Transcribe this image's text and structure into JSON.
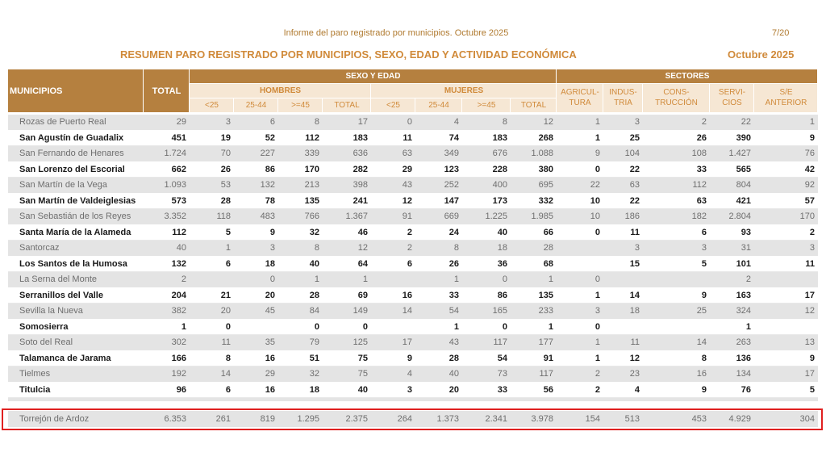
{
  "header": {
    "report": "Informe del paro registrado por municipios. Octubre 2025",
    "page": "7/20",
    "title": "RESUMEN PARO REGISTRADO POR MUNICIPIOS, SEXO, EDAD Y ACTIVIDAD ECONÓMICA",
    "month": "Octubre 2025"
  },
  "table": {
    "group_headers": {
      "municipios": "MUNICIPIOS",
      "total": "TOTAL",
      "sexo_edad": "SEXO Y EDAD",
      "sectores": "SECTORES",
      "hombres": "HOMBRES",
      "mujeres": "MUJERES"
    },
    "sub_headers": [
      "<25",
      "25-44",
      ">=45",
      "TOTAL",
      "<25",
      "25-44",
      ">=45",
      "TOTAL"
    ],
    "sector_headers": [
      [
        "AGRICUL-",
        "TURA"
      ],
      [
        "INDUS-",
        "TRIA"
      ],
      [
        "CONS-",
        "TRUCCIÓN"
      ],
      [
        "SERVI-",
        "CIOS"
      ],
      [
        "S/E",
        "ANTERIOR"
      ]
    ],
    "rows": [
      [
        "Rozas de Puerto Real",
        "29",
        "3",
        "6",
        "8",
        "17",
        "0",
        "4",
        "8",
        "12",
        "1",
        "3",
        "2",
        "22",
        "1"
      ],
      [
        "San Agustín de Guadalix",
        "451",
        "19",
        "52",
        "112",
        "183",
        "11",
        "74",
        "183",
        "268",
        "1",
        "25",
        "26",
        "390",
        "9"
      ],
      [
        "San Fernando de Henares",
        "1.724",
        "70",
        "227",
        "339",
        "636",
        "63",
        "349",
        "676",
        "1.088",
        "9",
        "104",
        "108",
        "1.427",
        "76"
      ],
      [
        "San Lorenzo del Escorial",
        "662",
        "26",
        "86",
        "170",
        "282",
        "29",
        "123",
        "228",
        "380",
        "0",
        "22",
        "33",
        "565",
        "42"
      ],
      [
        "San Martín de la Vega",
        "1.093",
        "53",
        "132",
        "213",
        "398",
        "43",
        "252",
        "400",
        "695",
        "22",
        "63",
        "112",
        "804",
        "92"
      ],
      [
        "San Martín de Valdeiglesias",
        "573",
        "28",
        "78",
        "135",
        "241",
        "12",
        "147",
        "173",
        "332",
        "10",
        "22",
        "63",
        "421",
        "57"
      ],
      [
        "San Sebastián de los Reyes",
        "3.352",
        "118",
        "483",
        "766",
        "1.367",
        "91",
        "669",
        "1.225",
        "1.985",
        "10",
        "186",
        "182",
        "2.804",
        "170"
      ],
      [
        "Santa María de la Alameda",
        "112",
        "5",
        "9",
        "32",
        "46",
        "2",
        "24",
        "40",
        "66",
        "0",
        "11",
        "6",
        "93",
        "2"
      ],
      [
        "Santorcaz",
        "40",
        "1",
        "3",
        "8",
        "12",
        "2",
        "8",
        "18",
        "28",
        null,
        "3",
        "3",
        "31",
        "3"
      ],
      [
        "Los Santos de la Humosa",
        "132",
        "6",
        "18",
        "40",
        "64",
        "6",
        "26",
        "36",
        "68",
        null,
        "15",
        "5",
        "101",
        "11"
      ],
      [
        "La Serna del Monte",
        "2",
        null,
        "0",
        "1",
        "1",
        null,
        "1",
        "0",
        "1",
        "0",
        null,
        null,
        "2",
        null
      ],
      [
        "Serranillos del Valle",
        "204",
        "21",
        "20",
        "28",
        "69",
        "16",
        "33",
        "86",
        "135",
        "1",
        "14",
        "9",
        "163",
        "17"
      ],
      [
        "Sevilla la Nueva",
        "382",
        "20",
        "45",
        "84",
        "149",
        "14",
        "54",
        "165",
        "233",
        "3",
        "18",
        "25",
        "324",
        "12"
      ],
      [
        "Somosierra",
        "1",
        "0",
        null,
        "0",
        "0",
        null,
        "1",
        "0",
        "1",
        "0",
        null,
        null,
        "1",
        null
      ],
      [
        "Soto del Real",
        "302",
        "11",
        "35",
        "79",
        "125",
        "17",
        "43",
        "117",
        "177",
        "1",
        "11",
        "14",
        "263",
        "13"
      ],
      [
        "Talamanca de Jarama",
        "166",
        "8",
        "16",
        "51",
        "75",
        "9",
        "28",
        "54",
        "91",
        "1",
        "12",
        "8",
        "136",
        "9"
      ],
      [
        "Tielmes",
        "192",
        "14",
        "29",
        "32",
        "75",
        "4",
        "40",
        "73",
        "117",
        "2",
        "23",
        "16",
        "134",
        "17"
      ],
      [
        "Titulcia",
        "96",
        "6",
        "16",
        "18",
        "40",
        "3",
        "20",
        "33",
        "56",
        "2",
        "4",
        "9",
        "76",
        "5"
      ]
    ],
    "highlight_row": [
      "Torrejón de Ardoz",
      "6.353",
      "261",
      "819",
      "1.295",
      "2.375",
      "264",
      "1.373",
      "2.341",
      "3.978",
      "154",
      "513",
      "453",
      "4.929",
      "304"
    ]
  }
}
